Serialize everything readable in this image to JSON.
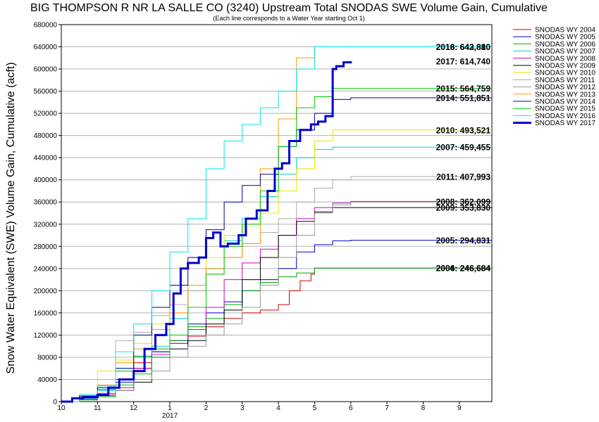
{
  "chart_data": {
    "type": "line",
    "title": "BIG THOMPSON R NR LA SALLE CO (3240) Upstream Total SNODAS SWE Volume Gain, Cumulative",
    "subtitle": "(Each line corresponds to a Water Year starting Oct 1)",
    "ylabel": "Snow Water Equivalent (SWE) Volume Gain, Cumulative (acft)",
    "xlabel": "",
    "ylim": [
      0,
      680000
    ],
    "xlim": [
      10,
      21.9
    ],
    "grid": true,
    "legend_position": "right",
    "y_ticks": [
      "0",
      "40000",
      "80000",
      "120000",
      "160000",
      "200000",
      "240000",
      "280000",
      "320000",
      "360000",
      "400000",
      "440000",
      "480000",
      "520000",
      "560000",
      "600000",
      "640000",
      "680000"
    ],
    "x_ticks": [
      {
        "value": 10,
        "label": "10"
      },
      {
        "value": 11,
        "label": "11"
      },
      {
        "value": 12,
        "label": "12"
      },
      {
        "value": 13,
        "label": "1"
      },
      {
        "value": 14,
        "label": "2"
      },
      {
        "value": 15,
        "label": "3"
      },
      {
        "value": 16,
        "label": "4"
      },
      {
        "value": 17,
        "label": "5"
      },
      {
        "value": 18,
        "label": "6"
      },
      {
        "value": 19,
        "label": "7"
      },
      {
        "value": 20,
        "label": "8"
      },
      {
        "value": 21,
        "label": "9"
      }
    ],
    "year_label": {
      "value": 13,
      "label": "2017"
    },
    "series": [
      {
        "name": "SNODAS WY 2004",
        "color": "#cc0000",
        "width": 1,
        "end_label": "2004: 246,684",
        "x": [
          10,
          10.5,
          11,
          11.5,
          12,
          12.5,
          13,
          13.5,
          14,
          14.5,
          15,
          15.5,
          16,
          16.3,
          16.6,
          16.9,
          17,
          21.9
        ],
        "y": [
          0,
          6000,
          15000,
          40000,
          70000,
          90000,
          105000,
          118000,
          135000,
          150000,
          160000,
          165000,
          175000,
          200000,
          218000,
          230000,
          241000,
          241000
        ]
      },
      {
        "name": "SNODAS WY 2005",
        "color": "#0000cc",
        "width": 1,
        "end_label": "2005: 294,831",
        "x": [
          10,
          10.5,
          11,
          11.5,
          12,
          12.5,
          13,
          13.5,
          14,
          14.5,
          15,
          15.5,
          16,
          16.5,
          17,
          17.5,
          18,
          21.9
        ],
        "y": [
          0,
          4000,
          12000,
          35000,
          60000,
          90000,
          110000,
          140000,
          160000,
          180000,
          200000,
          220000,
          240000,
          270000,
          283000,
          290000,
          291000,
          291000
        ]
      },
      {
        "name": "SNODAS WY 2006",
        "color": "#00aa00",
        "width": 1,
        "end_label": "2006: 246,684",
        "x": [
          10,
          10.5,
          11,
          11.5,
          12,
          12.5,
          13,
          13.5,
          14,
          14.5,
          15,
          15.5,
          16,
          16.5,
          17,
          21.9
        ],
        "y": [
          0,
          8000,
          22000,
          55000,
          82000,
          95000,
          110000,
          135000,
          150000,
          175000,
          200000,
          215000,
          225000,
          232000,
          241000,
          241000
        ]
      },
      {
        "name": "SNODAS WY 2007",
        "color": "#00cccc",
        "width": 1,
        "end_label": "2007: 459,455",
        "x": [
          10,
          10.5,
          11,
          11.5,
          12,
          12.5,
          13,
          13.5,
          14,
          14.5,
          15,
          15.5,
          16,
          16.5,
          17,
          17.5,
          21.9
        ],
        "y": [
          0,
          12000,
          28000,
          60000,
          80000,
          100000,
          150000,
          200000,
          240000,
          290000,
          330000,
          370000,
          410000,
          440000,
          455000,
          459000,
          459000
        ]
      },
      {
        "name": "SNODAS WY 2008",
        "color": "#cc00cc",
        "width": 1,
        "end_label": "2008: 362,099",
        "x": [
          10,
          10.5,
          11,
          11.5,
          12,
          12.5,
          13,
          13.5,
          14,
          14.5,
          15,
          15.5,
          16,
          16.5,
          17,
          17.5,
          18,
          21.9
        ],
        "y": [
          0,
          5000,
          12000,
          25000,
          60000,
          85000,
          105000,
          130000,
          170000,
          220000,
          250000,
          275000,
          300000,
          330000,
          350000,
          358000,
          361000,
          361000
        ]
      },
      {
        "name": "SNODAS WY 2009",
        "color": "#000000",
        "width": 1,
        "end_label": "2009: 353,830",
        "x": [
          10,
          10.5,
          11,
          11.5,
          12,
          12.5,
          13,
          13.5,
          14,
          14.5,
          15,
          15.5,
          16,
          16.5,
          17,
          17.5,
          21.9
        ],
        "y": [
          0,
          4000,
          10000,
          20000,
          35000,
          80000,
          95000,
          110000,
          140000,
          165000,
          220000,
          260000,
          300000,
          325000,
          342000,
          350000,
          350000
        ]
      },
      {
        "name": "SNODAS WY 2010",
        "color": "#e6e600",
        "width": 1,
        "end_label": "2010: 493,521",
        "x": [
          10,
          10.5,
          11,
          11.5,
          12,
          12.5,
          13,
          13.5,
          14,
          14.5,
          15,
          15.5,
          16,
          16.5,
          17,
          17.5,
          21.9
        ],
        "y": [
          0,
          10000,
          55000,
          75000,
          105000,
          140000,
          160000,
          200000,
          260000,
          300000,
          320000,
          340000,
          380000,
          420000,
          470000,
          490000,
          490000
        ]
      },
      {
        "name": "SNODAS WY 2011",
        "color": "#aaaaaa",
        "width": 1,
        "end_label": "2011: 407,993",
        "x": [
          10,
          10.5,
          11,
          11.5,
          12,
          12.5,
          13,
          13.5,
          14,
          14.5,
          15,
          15.5,
          16,
          16.5,
          17,
          17.5,
          18,
          21.9
        ],
        "y": [
          0,
          6000,
          20000,
          110000,
          125000,
          155000,
          175000,
          200000,
          230000,
          260000,
          285000,
          305000,
          330000,
          360000,
          385000,
          400000,
          406000,
          406000
        ]
      },
      {
        "name": "SNODAS WY 2012",
        "color": "#999999",
        "width": 1,
        "end_label": "",
        "x": [
          10,
          10.5,
          11,
          11.5,
          12,
          12.5,
          13,
          13.5,
          14,
          14.5,
          15,
          15.5,
          16,
          16.5,
          17,
          17.5,
          18,
          21.9
        ],
        "y": [
          0,
          3000,
          8000,
          20000,
          40000,
          55000,
          80000,
          100000,
          120000,
          140000,
          170000,
          210000,
          260000,
          300000,
          340000,
          355000,
          360000,
          360000
        ]
      },
      {
        "name": "SNODAS WY 2013",
        "color": "#ff9900",
        "width": 1,
        "end_label": "2013: 643,810",
        "x": [
          10,
          10.5,
          11,
          11.5,
          12,
          12.5,
          13,
          13.5,
          14,
          14.5,
          15,
          15.5,
          16,
          16.5,
          17,
          21.9
        ],
        "y": [
          0,
          8000,
          30000,
          70000,
          95000,
          130000,
          160000,
          210000,
          240000,
          260000,
          285000,
          420000,
          510000,
          620000,
          640000,
          640000
        ]
      },
      {
        "name": "SNODAS WY 2014",
        "color": "#000099",
        "width": 1,
        "end_label": "2014: 551,851",
        "x": [
          10,
          10.5,
          11,
          11.5,
          12,
          12.5,
          13,
          13.5,
          14,
          14.5,
          15,
          15.5,
          16,
          16.5,
          17,
          17.5,
          18,
          21.9
        ],
        "y": [
          0,
          10000,
          25000,
          60000,
          120000,
          170000,
          210000,
          260000,
          310000,
          360000,
          390000,
          410000,
          460000,
          490000,
          520000,
          545000,
          548000,
          548000
        ]
      },
      {
        "name": "SNODAS WY 2015",
        "color": "#00cc00",
        "width": 1,
        "end_label": "2015: 564,759",
        "x": [
          10,
          10.5,
          11,
          11.5,
          12,
          12.5,
          13,
          13.5,
          14,
          14.5,
          15,
          15.5,
          16,
          16.5,
          17,
          17.5,
          21.9
        ],
        "y": [
          0,
          3000,
          10000,
          30000,
          50000,
          80000,
          120000,
          170000,
          230000,
          280000,
          320000,
          380000,
          460000,
          530000,
          550000,
          565000,
          565000
        ]
      },
      {
        "name": "SNODAS WY 2016",
        "color": "#00e6e6",
        "width": 1,
        "end_label": "2016: 642,880",
        "x": [
          10,
          10.5,
          11,
          11.5,
          12,
          12.5,
          13,
          13.5,
          14,
          14.5,
          15,
          15.5,
          16,
          16.5,
          17,
          21.9
        ],
        "y": [
          0,
          5000,
          20000,
          90000,
          140000,
          200000,
          270000,
          330000,
          420000,
          470000,
          500000,
          530000,
          560000,
          600000,
          640000,
          640000
        ]
      },
      {
        "name": "SNODAS WY 2017",
        "color": "#0000cc",
        "width": 3,
        "end_label": "2017: 614,740",
        "x": [
          10,
          10.3,
          10.6,
          11,
          11.3,
          11.6,
          12,
          12.3,
          12.6,
          12.9,
          13.1,
          13.3,
          13.5,
          13.8,
          14,
          14.2,
          14.4,
          14.6,
          14.9,
          15.1,
          15.4,
          15.7,
          15.9,
          16.1,
          16.3,
          16.6,
          16.9,
          17.1,
          17.3,
          17.5,
          17.6,
          17.8,
          18
        ],
        "y": [
          0,
          6000,
          8000,
          12000,
          25000,
          40000,
          55000,
          95000,
          120000,
          140000,
          195000,
          240000,
          250000,
          260000,
          295000,
          305000,
          280000,
          285000,
          300000,
          330000,
          345000,
          380000,
          420000,
          430000,
          470000,
          490000,
          500000,
          505000,
          515000,
          600000,
          605000,
          612000,
          614000
        ]
      }
    ]
  }
}
